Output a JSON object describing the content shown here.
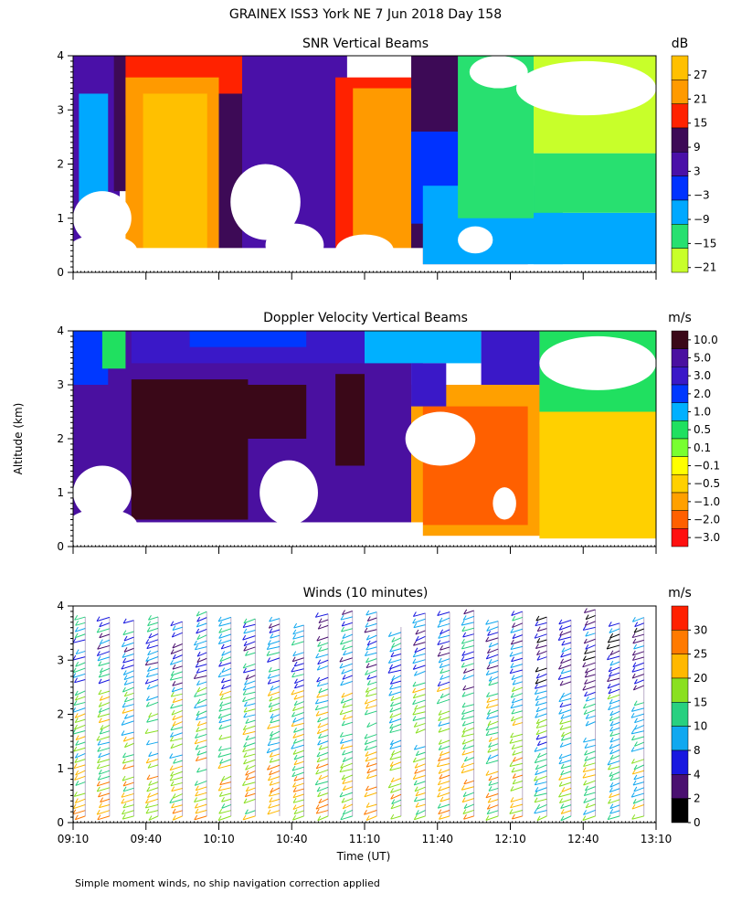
{
  "figure": {
    "title": "GRAINEX ISS3 York NE   7 Jun 2018 Day 158",
    "y_axis_label": "Altitude (km)",
    "x_axis_label": "Time (UT)",
    "footnote": "Simple moment winds, no ship navigation correction applied"
  },
  "chart_data": [
    {
      "type": "heatmap",
      "title": "SNR Vertical Beams",
      "colorbar_unit": "dB",
      "x_ticks": [
        "09:10",
        "09:40",
        "10:10",
        "10:40",
        "11:10",
        "11:40",
        "12:10",
        "12:40",
        "13:10"
      ],
      "y_ticks": [
        "0",
        "1",
        "2",
        "3",
        "4"
      ],
      "ylim": [
        0,
        4
      ],
      "colorbar_labels": [
        "27",
        "21",
        "15",
        "9",
        "3",
        "−3",
        "−9",
        "−15",
        "−21"
      ],
      "colorbar_colors": [
        "#ffc000",
        "#ff9a00",
        "#ff2200",
        "#3d0a56",
        "#4a10a8",
        "#0032ff",
        "#00a8ff",
        "#28e070",
        "#c8ff2a"
      ],
      "regions": [
        {
          "x0": 0.0,
          "x1": 0.08,
          "y0": 0.15,
          "y1": 4.0,
          "level": 4
        },
        {
          "x0": 0.01,
          "x1": 0.06,
          "y0": 1.0,
          "y1": 3.3,
          "level": 6
        },
        {
          "x0": 0.07,
          "x1": 0.1,
          "y0": 1.5,
          "y1": 4.0,
          "level": 3
        },
        {
          "x0": 0.09,
          "x1": 0.3,
          "y0": 2.9,
          "y1": 4.0,
          "level": 2
        },
        {
          "x0": 0.09,
          "x1": 0.25,
          "y0": 0.3,
          "y1": 3.6,
          "level": 1
        },
        {
          "x0": 0.12,
          "x1": 0.23,
          "y0": 0.3,
          "y1": 3.3,
          "level": 0
        },
        {
          "x0": 0.25,
          "x1": 0.32,
          "y0": 0.2,
          "y1": 3.3,
          "level": 3
        },
        {
          "x0": 0.29,
          "x1": 0.47,
          "y0": 0.2,
          "y1": 4.0,
          "level": 4
        },
        {
          "x0": 0.45,
          "x1": 0.6,
          "y0": 0.2,
          "y1": 3.6,
          "level": 2
        },
        {
          "x0": 0.48,
          "x1": 0.58,
          "y0": 0.4,
          "y1": 3.4,
          "level": 1
        },
        {
          "x0": 0.58,
          "x1": 0.78,
          "y0": 0.15,
          "y1": 4.0,
          "level": 3
        },
        {
          "x0": 0.58,
          "x1": 0.66,
          "y0": 0.9,
          "y1": 2.6,
          "level": 5
        },
        {
          "x0": 0.6,
          "x1": 0.84,
          "y0": 0.15,
          "y1": 1.6,
          "level": 6
        },
        {
          "x0": 0.66,
          "x1": 0.79,
          "y0": 1.0,
          "y1": 4.0,
          "level": 7
        },
        {
          "x0": 0.79,
          "x1": 1.0,
          "y0": 0.15,
          "y1": 1.1,
          "level": 6
        },
        {
          "x0": 0.79,
          "x1": 1.0,
          "y0": 1.1,
          "y1": 2.2,
          "level": 7
        },
        {
          "x0": 0.79,
          "x1": 1.0,
          "y0": 2.2,
          "y1": 4.0,
          "level": 8
        }
      ],
      "missing_blobs": [
        {
          "x": 0.05,
          "y": 1.0,
          "rx": 0.05,
          "ry": 0.5
        },
        {
          "x": 0.05,
          "y": 0.4,
          "rx": 0.06,
          "ry": 0.3
        },
        {
          "x": 0.33,
          "y": 1.3,
          "rx": 0.06,
          "ry": 0.7
        },
        {
          "x": 0.38,
          "y": 0.5,
          "rx": 0.05,
          "ry": 0.4
        },
        {
          "x": 0.5,
          "y": 0.4,
          "rx": 0.05,
          "ry": 0.3
        },
        {
          "x": 0.88,
          "y": 3.4,
          "rx": 0.12,
          "ry": 0.5
        },
        {
          "x": 0.73,
          "y": 3.7,
          "rx": 0.05,
          "ry": 0.3
        },
        {
          "x": 0.69,
          "y": 0.6,
          "rx": 0.03,
          "ry": 0.25
        }
      ],
      "missing_floor": [
        {
          "x0": 0.0,
          "x1": 0.6,
          "y0": 0.0,
          "y1": 0.45
        },
        {
          "x0": 0.6,
          "x1": 1.0,
          "y0": 0.0,
          "y1": 0.12
        }
      ]
    },
    {
      "type": "heatmap",
      "title": "Doppler Velocity Vertical Beams",
      "colorbar_unit": "m/s",
      "x_ticks": [
        "09:10",
        "09:40",
        "10:10",
        "10:40",
        "11:10",
        "11:40",
        "12:10",
        "12:40",
        "13:10"
      ],
      "y_ticks": [
        "0",
        "1",
        "2",
        "3",
        "4"
      ],
      "ylim": [
        0,
        4
      ],
      "colorbar_labels": [
        "10.0",
        "5.0",
        "3.0",
        "2.0",
        "1.0",
        "0.5",
        "0.1",
        "−0.1",
        "−0.5",
        "−1.0",
        "−2.0",
        "−3.0"
      ],
      "colorbar_colors": [
        "#3a0818",
        "#4a10a0",
        "#3a18c8",
        "#0038ff",
        "#00b0ff",
        "#20e060",
        "#78ff30",
        "#ffff00",
        "#ffd000",
        "#ffa000",
        "#ff6000",
        "#ff1010"
      ],
      "regions": [
        {
          "x0": 0.0,
          "x1": 0.58,
          "y0": 0.15,
          "y1": 4.0,
          "level": 1
        },
        {
          "x0": 0.0,
          "x1": 0.06,
          "y0": 3.0,
          "y1": 4.0,
          "level": 3
        },
        {
          "x0": 0.05,
          "x1": 0.09,
          "y0": 3.3,
          "y1": 4.0,
          "level": 5
        },
        {
          "x0": 0.1,
          "x1": 0.6,
          "y0": 3.4,
          "y1": 4.0,
          "level": 2
        },
        {
          "x0": 0.2,
          "x1": 0.4,
          "y0": 3.7,
          "y1": 4.0,
          "level": 3
        },
        {
          "x0": 0.1,
          "x1": 0.3,
          "y0": 0.5,
          "y1": 3.1,
          "level": 0
        },
        {
          "x0": 0.28,
          "x1": 0.4,
          "y0": 2.0,
          "y1": 3.0,
          "level": 0
        },
        {
          "x0": 0.45,
          "x1": 0.5,
          "y0": 1.5,
          "y1": 3.2,
          "level": 0
        },
        {
          "x0": 0.5,
          "x1": 0.7,
          "y0": 3.4,
          "y1": 4.0,
          "level": 4
        },
        {
          "x0": 0.58,
          "x1": 0.82,
          "y0": 0.2,
          "y1": 3.0,
          "level": 9
        },
        {
          "x0": 0.6,
          "x1": 0.78,
          "y0": 0.4,
          "y1": 2.6,
          "level": 10
        },
        {
          "x0": 0.58,
          "x1": 0.64,
          "y0": 2.6,
          "y1": 3.4,
          "level": 2
        },
        {
          "x0": 0.8,
          "x1": 1.0,
          "y0": 0.15,
          "y1": 2.5,
          "level": 8
        },
        {
          "x0": 0.8,
          "x1": 1.0,
          "y0": 2.5,
          "y1": 4.0,
          "level": 5
        },
        {
          "x0": 0.7,
          "x1": 0.8,
          "y0": 3.0,
          "y1": 4.0,
          "level": 2
        }
      ],
      "missing_blobs": [
        {
          "x": 0.05,
          "y": 1.0,
          "rx": 0.05,
          "ry": 0.5
        },
        {
          "x": 0.05,
          "y": 0.4,
          "rx": 0.06,
          "ry": 0.3
        },
        {
          "x": 0.37,
          "y": 1.0,
          "rx": 0.05,
          "ry": 0.6
        },
        {
          "x": 0.63,
          "y": 2.0,
          "rx": 0.06,
          "ry": 0.5
        },
        {
          "x": 0.9,
          "y": 3.4,
          "rx": 0.1,
          "ry": 0.5
        },
        {
          "x": 0.74,
          "y": 0.8,
          "rx": 0.02,
          "ry": 0.3
        }
      ],
      "missing_floor": [
        {
          "x0": 0.0,
          "x1": 0.6,
          "y0": 0.0,
          "y1": 0.45
        },
        {
          "x0": 0.6,
          "x1": 1.0,
          "y0": 0.0,
          "y1": 0.12
        }
      ]
    },
    {
      "type": "scatter",
      "title": "Winds (10 minutes)",
      "colorbar_unit": "m/s",
      "x_ticks": [
        "09:10",
        "09:40",
        "10:10",
        "10:40",
        "11:10",
        "11:40",
        "12:10",
        "12:40",
        "13:10"
      ],
      "y_ticks": [
        "0",
        "1",
        "2",
        "3",
        "4"
      ],
      "ylim": [
        0,
        4
      ],
      "colorbar_labels": [
        "30",
        "25",
        "20",
        "15",
        "10",
        "8",
        "4",
        "2",
        "0"
      ],
      "colorbar_colors": [
        "#ff2000",
        "#ff7a00",
        "#ffb800",
        "#8ae020",
        "#28d080",
        "#10a8f0",
        "#1818e0",
        "#4a1070",
        "#000000"
      ],
      "profiles": 24,
      "levels_per_profile": 36
    }
  ]
}
